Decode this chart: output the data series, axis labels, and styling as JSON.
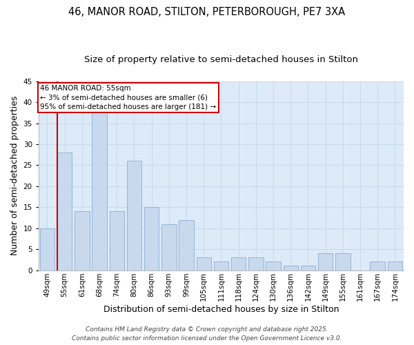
{
  "title_line1": "46, MANOR ROAD, STILTON, PETERBOROUGH, PE7 3XA",
  "title_line2": "Size of property relative to semi-detached houses in Stilton",
  "xlabel": "Distribution of semi-detached houses by size in Stilton",
  "ylabel": "Number of semi-detached properties",
  "categories": [
    "49sqm",
    "55sqm",
    "61sqm",
    "68sqm",
    "74sqm",
    "80sqm",
    "86sqm",
    "93sqm",
    "99sqm",
    "105sqm",
    "111sqm",
    "118sqm",
    "124sqm",
    "130sqm",
    "136sqm",
    "142sqm",
    "149sqm",
    "155sqm",
    "161sqm",
    "167sqm",
    "174sqm"
  ],
  "values": [
    10,
    28,
    14,
    38,
    14,
    26,
    15,
    11,
    12,
    3,
    2,
    3,
    3,
    2,
    1,
    1,
    4,
    4,
    0,
    2,
    2
  ],
  "bar_color": "#c8d9ee",
  "bar_edge_color": "#8aadd4",
  "highlight_bar_index": 1,
  "annotation_text": "46 MANOR ROAD: 55sqm\n← 3% of semi-detached houses are smaller (6)\n95% of semi-detached houses are larger (181) →",
  "annotation_box_edge_color": "#cc0000",
  "ylim": [
    0,
    45
  ],
  "yticks": [
    0,
    5,
    10,
    15,
    20,
    25,
    30,
    35,
    40,
    45
  ],
  "grid_color": "#c8d8ec",
  "background_color": "#ddeaf8",
  "footer_line1": "Contains HM Land Registry data © Crown copyright and database right 2025.",
  "footer_line2": "Contains public sector information licensed under the Open Government Licence v3.0.",
  "title_fontsize": 10.5,
  "subtitle_fontsize": 9.5,
  "axis_label_fontsize": 9,
  "tick_fontsize": 7.5,
  "footer_fontsize": 6.5,
  "annotation_fontsize": 7.5
}
